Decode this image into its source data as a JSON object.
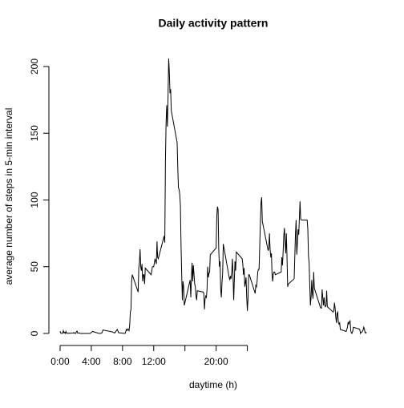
{
  "chart_data": {
    "type": "line",
    "title": "Daily activity pattern",
    "x_label": "daytime (h)",
    "y_label": "average number of steps in 5-min interval",
    "x": [
      0,
      5,
      10,
      15,
      20,
      25,
      30,
      35,
      40,
      45,
      50,
      55,
      100,
      105,
      110,
      115,
      120,
      125,
      130,
      135,
      140,
      145,
      150,
      155,
      200,
      230,
      250,
      300,
      320,
      330,
      400,
      420,
      440,
      450,
      500,
      510,
      515,
      520,
      525,
      530,
      535,
      540,
      545,
      550,
      555,
      600,
      605,
      610,
      615,
      620,
      625,
      630,
      635,
      640,
      645,
      650,
      655,
      700,
      710,
      720,
      730,
      740,
      745,
      750,
      755,
      800,
      805,
      810,
      815,
      820,
      825,
      830,
      835,
      840,
      845,
      850,
      855,
      900,
      905,
      910,
      915,
      920,
      925,
      930,
      935,
      940,
      945,
      950,
      955,
      1000,
      1005,
      1010,
      1015,
      1020,
      1025,
      1030,
      1035,
      1040,
      1045,
      1050,
      1055,
      1100,
      1105,
      1110,
      1115,
      1120,
      1125,
      1130,
      1135,
      1140,
      1145,
      1150,
      1155,
      1200,
      1205,
      1210,
      1215,
      1220,
      1225,
      1230,
      1235,
      1240,
      1245,
      1250,
      1255,
      1300,
      1305,
      1310,
      1315,
      1320,
      1325,
      1330,
      1335,
      1340,
      1345,
      1350,
      1355,
      1400,
      1405,
      1410,
      1415,
      1420,
      1425,
      1430,
      1435,
      1440,
      1445,
      1450,
      1455,
      1500,
      1505,
      1510,
      1515,
      1520,
      1525,
      1530,
      1535,
      1540,
      1545,
      1550,
      1555,
      1600,
      1605,
      1610,
      1615,
      1620,
      1625,
      1630,
      1635,
      1640,
      1645,
      1650,
      1655,
      1700,
      1705,
      1710,
      1715,
      1720,
      1725,
      1730,
      1735,
      1740,
      1745,
      1750,
      1755,
      1800,
      1805,
      1810,
      1815,
      1820,
      1825,
      1830,
      1835,
      1840,
      1845,
      1850,
      1855,
      1900,
      1905,
      1910,
      1915,
      1920,
      1925,
      1930,
      1935,
      1940,
      1945,
      1950,
      1955,
      2000,
      2005,
      2010,
      2015,
      2020,
      2025,
      2030,
      2035,
      2040,
      2045,
      2050,
      2055,
      2100,
      2105,
      2110,
      2115,
      2120,
      2125,
      2130,
      2135,
      2140,
      2145,
      2150,
      2155,
      2200,
      2205,
      2210,
      2215,
      2220,
      2225,
      2230,
      2235,
      2240,
      2245,
      2250,
      2255,
      2300,
      2305,
      2310,
      2315,
      2320,
      2325,
      2330,
      2335,
      2340,
      2345,
      2350,
      2355
    ],
    "values": [
      1.7,
      0.3,
      0.1,
      0.2,
      0.1,
      2.1,
      0.5,
      0.9,
      0,
      1.5,
      0.3,
      0.1,
      0.3,
      0.7,
      0.2,
      0.3,
      0,
      1.1,
      1.8,
      0.2,
      0.2,
      0.4,
      0.3,
      0,
      0,
      0,
      1.5,
      0,
      0.2,
      2.6,
      1.2,
      0.3,
      3,
      0.5,
      0,
      3,
      2.2,
      3.3,
      3,
      2.1,
      6,
      16,
      18,
      39,
      44,
      31,
      49,
      53,
      63,
      50,
      47,
      52,
      39,
      44,
      44,
      37,
      49,
      44,
      50,
      50,
      56,
      52,
      69,
      57,
      56,
      73,
      68,
      129,
      158,
      171,
      155,
      177,
      206,
      196,
      180,
      183,
      167,
      143,
      124,
      109,
      108,
      104,
      96,
      66,
      45,
      25,
      39,
      35,
      21,
      40,
      27,
      42,
      53,
      39,
      51,
      44,
      37,
      35,
      28,
      25,
      32,
      31,
      30,
      18,
      26,
      28,
      27,
      33,
      50,
      42,
      45,
      46,
      59,
      64,
      88,
      95,
      93,
      63,
      50,
      54,
      33,
      27,
      38,
      45,
      67,
      42,
      40,
      43,
      41,
      46,
      56,
      43,
      25,
      40,
      54,
      47,
      61,
      56,
      52,
      44,
      49,
      35,
      38,
      42,
      27,
      17,
      26,
      44,
      44,
      30,
      36,
      35,
      39,
      46,
      48,
      48,
      65,
      83,
      98,
      102,
      84,
      62,
      64,
      75,
      63,
      57,
      60,
      44,
      39,
      45,
      46,
      46,
      44,
      46,
      57,
      51,
      61,
      73,
      79,
      69,
      60,
      75,
      57,
      35,
      37,
      41,
      58,
      75,
      85,
      59,
      68,
      78,
      74,
      86,
      99,
      86,
      85,
      85,
      78,
      58,
      53,
      36,
      21,
      27,
      40,
      30,
      26,
      46,
      34,
      20,
      19,
      19,
      33,
      27,
      21,
      27,
      21,
      20,
      21,
      32,
      20,
      16,
      17,
      23,
      19,
      12,
      8,
      15,
      16,
      8,
      7,
      8,
      3,
      1.5,
      3,
      4.8,
      8.5,
      7.1,
      8.7,
      9.8,
      2.2,
      0.3,
      0.1,
      1.6,
      4.6,
      3.3,
      2.8,
      0,
      0.8,
      1,
      1.6,
      2.6,
      4.7,
      3.3,
      0.6,
      0.2,
      1.1
    ],
    "color": "#000000",
    "xlim": [
      -94.2,
      2449.2
    ],
    "ylim": [
      -8.24,
      214.4
    ],
    "xticks": [
      {
        "value": 0,
        "label": "0:00"
      },
      {
        "value": 240,
        "label": "4:00"
      },
      {
        "value": 480,
        "label": "8:00"
      },
      {
        "value": 720,
        "label": "12:00"
      },
      {
        "value": 960,
        "label": null
      },
      {
        "value": 1200,
        "label": "20:00"
      },
      {
        "value": 1440,
        "label": null
      }
    ],
    "yticks": [
      0,
      50,
      100,
      150,
      200
    ]
  }
}
